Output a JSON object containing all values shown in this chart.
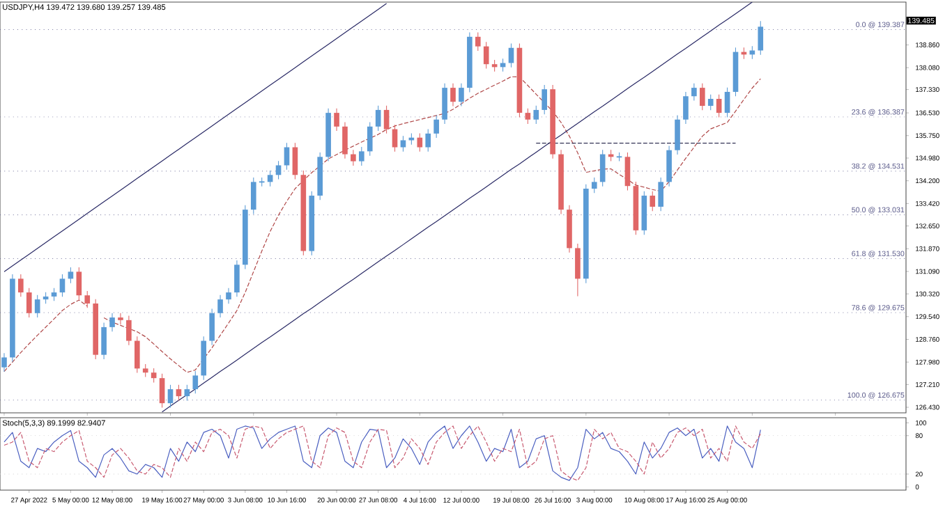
{
  "chart_data": [
    {
      "type": "candlestick",
      "title": "USDJPY,H4  139.472 139.680 139.257 139.485",
      "categories": [
        null,
        null,
        null,
        null,
        null,
        null,
        null,
        null,
        null,
        null,
        null,
        null,
        null,
        null,
        null,
        null,
        null,
        null,
        null,
        null,
        null,
        null,
        null,
        null,
        null,
        null,
        null,
        null,
        null,
        null,
        null,
        null,
        null,
        null,
        null,
        null,
        null,
        null,
        null,
        null,
        null,
        null,
        null,
        null,
        null,
        null,
        null,
        null,
        null,
        null,
        null,
        null,
        null,
        null,
        null,
        null,
        null,
        null,
        null,
        null,
        null,
        null,
        null,
        null,
        null,
        null,
        null,
        null,
        null,
        null,
        null,
        null,
        null,
        null,
        null,
        null,
        null,
        null,
        null,
        null,
        null,
        null,
        null,
        null,
        null,
        null,
        null,
        null,
        null,
        null,
        null,
        null,
        null,
        null,
        null,
        null,
        null,
        null,
        null,
        null,
        null,
        null,
        null,
        null,
        null,
        null,
        null,
        null,
        null
      ],
      "ohlc": [
        [
          127.8,
          128.29,
          127.65,
          128.14
        ],
        [
          128.14,
          130.99,
          127.99,
          130.84
        ],
        [
          130.84,
          130.99,
          130.22,
          130.37
        ],
        [
          130.37,
          130.52,
          129.51,
          129.66
        ],
        [
          129.66,
          130.28,
          129.51,
          130.13
        ],
        [
          130.13,
          130.38,
          129.98,
          130.23
        ],
        [
          130.23,
          130.52,
          130.08,
          130.37
        ],
        [
          130.37,
          130.99,
          130.22,
          130.84
        ],
        [
          130.84,
          131.23,
          130.69,
          131.08
        ],
        [
          131.08,
          131.23,
          130.12,
          130.27
        ],
        [
          130.27,
          130.42,
          129.84,
          129.99
        ],
        [
          129.99,
          130.14,
          128.08,
          128.23
        ],
        [
          128.23,
          129.33,
          128.08,
          129.18
        ],
        [
          129.18,
          129.66,
          129.03,
          129.51
        ],
        [
          129.51,
          129.66,
          129.27,
          129.42
        ],
        [
          129.42,
          129.57,
          128.56,
          128.71
        ],
        [
          128.71,
          128.86,
          127.61,
          127.76
        ],
        [
          127.76,
          127.91,
          127.47,
          127.62
        ],
        [
          127.62,
          127.77,
          127.28,
          127.43
        ],
        [
          127.43,
          127.58,
          126.42,
          126.57
        ],
        [
          126.57,
          127.2,
          126.42,
          127.05
        ],
        [
          127.05,
          127.2,
          126.66,
          126.81
        ],
        [
          126.81,
          127.2,
          126.66,
          127.05
        ],
        [
          127.05,
          127.67,
          126.9,
          127.52
        ],
        [
          127.52,
          128.86,
          127.37,
          128.71
        ],
        [
          128.71,
          129.81,
          128.56,
          129.66
        ],
        [
          129.66,
          130.28,
          129.51,
          130.13
        ],
        [
          130.13,
          130.52,
          129.98,
          130.37
        ],
        [
          130.37,
          131.47,
          130.22,
          131.32
        ],
        [
          131.32,
          133.36,
          131.17,
          133.21
        ],
        [
          133.21,
          134.31,
          133.06,
          134.16
        ],
        [
          134.16,
          134.31,
          134.01,
          134.16
        ],
        [
          134.16,
          134.55,
          134.01,
          134.4
        ],
        [
          134.4,
          134.88,
          134.25,
          134.73
        ],
        [
          134.73,
          135.5,
          134.58,
          135.35
        ],
        [
          135.35,
          135.5,
          134.25,
          134.4
        ],
        [
          134.4,
          134.55,
          131.64,
          131.79
        ],
        [
          131.79,
          133.84,
          131.64,
          133.69
        ],
        [
          133.69,
          135.17,
          133.54,
          135.02
        ],
        [
          135.02,
          136.68,
          134.87,
          136.53
        ],
        [
          136.53,
          136.68,
          135.91,
          136.06
        ],
        [
          136.06,
          136.21,
          134.96,
          135.11
        ],
        [
          135.11,
          135.26,
          134.72,
          134.87
        ],
        [
          134.87,
          135.36,
          134.72,
          135.21
        ],
        [
          135.21,
          136.21,
          135.06,
          136.06
        ],
        [
          136.06,
          136.78,
          135.91,
          136.63
        ],
        [
          136.63,
          136.78,
          135.82,
          135.97
        ],
        [
          135.97,
          136.12,
          135.2,
          135.35
        ],
        [
          135.35,
          135.74,
          135.2,
          135.59
        ],
        [
          135.59,
          135.83,
          135.44,
          135.68
        ],
        [
          135.68,
          135.83,
          135.2,
          135.35
        ],
        [
          135.35,
          135.97,
          135.2,
          135.82
        ],
        [
          135.82,
          136.45,
          135.67,
          136.3
        ],
        [
          136.3,
          137.54,
          136.15,
          137.39
        ],
        [
          137.39,
          137.54,
          136.76,
          136.91
        ],
        [
          136.91,
          137.54,
          136.76,
          137.39
        ],
        [
          137.39,
          139.29,
          137.24,
          139.14
        ],
        [
          139.14,
          139.29,
          138.66,
          138.81
        ],
        [
          138.81,
          138.96,
          138.05,
          138.2
        ],
        [
          138.2,
          138.35,
          137.95,
          138.1
        ],
        [
          138.1,
          138.39,
          137.95,
          138.24
        ],
        [
          138.24,
          138.91,
          138.09,
          138.76
        ],
        [
          138.76,
          138.91,
          136.38,
          136.53
        ],
        [
          136.53,
          136.68,
          136.15,
          136.3
        ],
        [
          136.3,
          136.78,
          136.15,
          136.63
        ],
        [
          136.63,
          137.49,
          136.48,
          137.34
        ],
        [
          137.34,
          137.49,
          134.96,
          135.11
        ],
        [
          135.11,
          135.26,
          133.06,
          133.21
        ],
        [
          133.21,
          133.36,
          131.74,
          131.89
        ],
        [
          131.89,
          132.04,
          130.24,
          130.84
        ],
        [
          130.84,
          134.08,
          130.69,
          133.93
        ],
        [
          133.93,
          134.31,
          133.78,
          134.16
        ],
        [
          134.16,
          135.26,
          134.01,
          135.11
        ],
        [
          135.11,
          135.26,
          134.87,
          135.02
        ],
        [
          135.02,
          135.17,
          134.87,
          135.02
        ],
        [
          135.02,
          135.17,
          133.87,
          134.02
        ],
        [
          134.02,
          134.17,
          132.35,
          132.5
        ],
        [
          132.5,
          133.84,
          132.35,
          133.69
        ],
        [
          133.69,
          133.84,
          133.16,
          133.31
        ],
        [
          133.31,
          134.31,
          133.16,
          134.16
        ],
        [
          134.16,
          135.4,
          134.01,
          135.25
        ],
        [
          135.25,
          136.45,
          135.1,
          136.3
        ],
        [
          136.3,
          137.25,
          136.15,
          137.1
        ],
        [
          137.1,
          137.54,
          136.95,
          137.39
        ],
        [
          137.39,
          137.54,
          136.62,
          136.77
        ],
        [
          136.77,
          137.16,
          136.62,
          137.01
        ],
        [
          137.01,
          137.16,
          136.38,
          136.53
        ],
        [
          136.53,
          137.4,
          136.38,
          137.25
        ],
        [
          137.25,
          138.77,
          137.1,
          138.62
        ],
        [
          138.62,
          138.77,
          138.38,
          138.53
        ],
        [
          138.53,
          138.82,
          138.38,
          138.67
        ],
        [
          138.67,
          139.68,
          138.52,
          139.485
        ],
        null,
        null,
        null,
        null,
        null,
        null,
        null,
        null,
        null,
        null,
        null,
        null,
        null,
        null,
        null,
        null,
        null
      ],
      "colors": [
        "#5b9bd5",
        "#5b9bd5",
        "#e06666",
        "#e06666",
        "#5b9bd5",
        "#5b9bd5",
        "#5b9bd5",
        "#5b9bd5",
        "#5b9bd5",
        "#e06666",
        "#e06666",
        "#e06666",
        "#5b9bd5",
        "#5b9bd5",
        "#e06666",
        "#e06666",
        "#e06666",
        "#e06666",
        "#e06666",
        "#e06666",
        "#5b9bd5",
        "#e06666",
        "#5b9bd5",
        "#5b9bd5",
        "#5b9bd5",
        "#5b9bd5",
        "#5b9bd5",
        "#5b9bd5",
        "#5b9bd5",
        "#5b9bd5",
        "#5b9bd5",
        "#5b9bd5",
        "#5b9bd5",
        "#5b9bd5",
        "#5b9bd5",
        "#e06666",
        "#e06666",
        "#5b9bd5",
        "#5b9bd5",
        "#5b9bd5",
        "#e06666",
        "#e06666",
        "#e06666",
        "#5b9bd5",
        "#5b9bd5",
        "#5b9bd5",
        "#e06666",
        "#e06666",
        "#5b9bd5",
        "#5b9bd5",
        "#e06666",
        "#5b9bd5",
        "#5b9bd5",
        "#5b9bd5",
        "#e06666",
        "#5b9bd5",
        "#5b9bd5",
        "#e06666",
        "#e06666",
        "#e06666",
        "#5b9bd5",
        "#5b9bd5",
        "#e06666",
        "#e06666",
        "#5b9bd5",
        "#5b9bd5",
        "#e06666",
        "#e06666",
        "#e06666",
        "#e06666",
        "#5b9bd5",
        "#5b9bd5",
        "#5b9bd5",
        "#e06666",
        "#5b9bd5",
        "#e06666",
        "#e06666",
        "#5b9bd5",
        "#e06666",
        "#5b9bd5",
        "#5b9bd5",
        "#5b9bd5",
        "#5b9bd5",
        "#5b9bd5",
        "#e06666",
        "#5b9bd5",
        "#e06666",
        "#5b9bd5",
        "#5b9bd5",
        "#e06666",
        "#5b9bd5",
        "#5b9bd5",
        null,
        null,
        null,
        null,
        null,
        null,
        null,
        null,
        null,
        null,
        null,
        null,
        null,
        null,
        null,
        null,
        null
      ],
      "series": [
        {
          "type": "line",
          "color": "#b04848",
          "line_style": "dashed",
          "values": [
            127.66,
            127.98,
            128.31,
            128.61,
            128.9,
            129.18,
            129.46,
            129.75,
            129.96,
            130.11,
            129.9,
            null,
            129.5,
            129.35,
            129.24,
            129.13,
            129.02,
            128.85,
            128.6,
            128.34,
            128.09,
            127.86,
            127.63,
            127.71,
            128.09,
            128.47,
            128.9,
            129.32,
            129.75,
            130.37,
            131.08,
            131.79,
            132.46,
            133.02,
            133.5,
            133.93,
            134.21,
            134.48,
            134.71,
            134.95,
            135.1,
            135.25,
            135.39,
            135.53,
            135.66,
            135.79,
            135.96,
            136.08,
            136.16,
            136.23,
            136.3,
            136.37,
            136.44,
            136.51,
            136.65,
            136.84,
            137.03,
            137.2,
            137.34,
            137.48,
            137.62,
            137.77,
            137.76,
            137.47,
            137.17,
            136.88,
            136.58,
            136.2,
            135.73,
            135.16,
            134.49,
            134.54,
            134.6,
            134.61,
            134.42,
            134.24,
            134.05,
            133.98,
            133.9,
            133.84,
            134.17,
            134.57,
            134.97,
            135.35,
            135.73,
            135.98,
            136.09,
            136.2,
            136.59,
            136.99,
            137.38,
            137.7,
            null,
            null,
            null,
            null,
            null,
            null,
            null,
            null,
            null,
            null,
            null,
            null,
            null,
            null,
            null,
            null,
            null
          ]
        },
        {
          "type": "line",
          "color": "#2a2a66",
          "line_style": "solid",
          "values": [
            131.08,
            131.28,
            131.48,
            131.68,
            131.88,
            132.08,
            132.28,
            132.48,
            132.68,
            132.88,
            133.08,
            133.28,
            133.48,
            133.68,
            133.88,
            134.08,
            134.28,
            134.48,
            134.68,
            134.88,
            135.08,
            135.28,
            135.48,
            135.68,
            135.88,
            136.08,
            136.28,
            136.48,
            136.68,
            136.88,
            137.08,
            137.28,
            137.48,
            137.68,
            137.88,
            138.08,
            138.28,
            138.48,
            138.68,
            138.88,
            139.08,
            139.28,
            139.48,
            139.68,
            139.88,
            140.08,
            140.28,
            null,
            null,
            null,
            null,
            null,
            null,
            null,
            null,
            null,
            null,
            null,
            null,
            null,
            null,
            null,
            null,
            null,
            null,
            null,
            null,
            null,
            null,
            null,
            null,
            null,
            null,
            null,
            null,
            null,
            null,
            null,
            null,
            null,
            null,
            null,
            null,
            null,
            null,
            null,
            null,
            null,
            null,
            null,
            null,
            null,
            null,
            null,
            null,
            null,
            null,
            null,
            null,
            null,
            null,
            null,
            null,
            null,
            null,
            null,
            null,
            null,
            null
          ]
        },
        {
          "type": "line",
          "color": "#2a2a66",
          "line_style": "solid",
          "values": [
            null,
            null,
            null,
            null,
            null,
            null,
            null,
            null,
            null,
            null,
            null,
            null,
            null,
            null,
            null,
            null,
            null,
            null,
            null,
            126.27,
            126.47,
            126.67,
            126.86,
            127.06,
            127.26,
            127.46,
            127.66,
            127.85,
            128.05,
            128.25,
            128.45,
            128.65,
            128.84,
            129.04,
            129.24,
            129.44,
            129.64,
            129.83,
            130.03,
            130.23,
            130.43,
            130.63,
            130.82,
            131.02,
            131.22,
            131.42,
            131.62,
            131.81,
            132.01,
            132.21,
            132.41,
            132.61,
            132.8,
            133.0,
            133.2,
            133.4,
            133.6,
            133.79,
            133.99,
            134.19,
            134.39,
            134.59,
            134.78,
            134.98,
            135.18,
            135.38,
            135.58,
            135.77,
            135.97,
            136.17,
            136.37,
            136.57,
            136.76,
            136.96,
            137.16,
            137.36,
            137.56,
            137.75,
            137.95,
            138.15,
            138.35,
            138.55,
            138.74,
            138.94,
            139.14,
            139.34,
            139.54,
            139.73,
            139.93,
            140.13,
            140.33,
            null,
            null,
            null,
            null,
            null,
            null,
            null,
            null,
            null,
            null,
            null,
            null,
            null,
            null,
            null,
            null,
            null,
            null
          ]
        },
        {
          "type": "line",
          "color": "#333355",
          "line_style": "dashed",
          "values": [
            null,
            null,
            null,
            null,
            null,
            null,
            null,
            null,
            null,
            null,
            null,
            null,
            null,
            null,
            null,
            null,
            null,
            null,
            null,
            null,
            null,
            null,
            null,
            null,
            null,
            null,
            null,
            null,
            null,
            null,
            null,
            null,
            null,
            null,
            null,
            null,
            null,
            null,
            null,
            null,
            null,
            null,
            null,
            null,
            null,
            null,
            null,
            null,
            null,
            null,
            null,
            null,
            null,
            null,
            null,
            null,
            null,
            null,
            null,
            null,
            null,
            null,
            null,
            null,
            135.49,
            135.49,
            135.49,
            135.49,
            135.49,
            135.49,
            135.49,
            135.49,
            135.49,
            135.49,
            135.49,
            135.49,
            135.49,
            135.49,
            135.49,
            135.49,
            135.49,
            135.49,
            135.49,
            135.49,
            135.49,
            135.49,
            135.49,
            135.49,
            135.49,
            null,
            null,
            null,
            null,
            null,
            null,
            null,
            null,
            null,
            null,
            null,
            null,
            null,
            null,
            null,
            null,
            null,
            null,
            null,
            null
          ]
        }
      ],
      "ref_lines": [
        {
          "axis": "y",
          "value": 139.387,
          "label": "0.0 @ 139.387",
          "color": "#5a5a8a",
          "line_style": "dotted"
        },
        {
          "axis": "y",
          "value": 136.387,
          "label": "23.6 @ 136.387",
          "color": "#5a5a8a",
          "line_style": "dotted"
        },
        {
          "axis": "y",
          "value": 134.531,
          "label": "38.2 @ 134.531",
          "color": "#5a5a8a",
          "line_style": "dotted"
        },
        {
          "axis": "y",
          "value": 133.031,
          "label": "50.0 @ 133.031",
          "color": "#5a5a8a",
          "line_style": "dotted"
        },
        {
          "axis": "y",
          "value": 131.53,
          "label": "61.8 @ 131.530",
          "color": "#5a5a8a",
          "line_style": "dotted"
        },
        {
          "axis": "y",
          "value": 129.675,
          "label": "78.6 @ 129.675",
          "color": "#5a5a8a",
          "line_style": "dotted"
        },
        {
          "axis": "y",
          "value": 126.675,
          "label": "100.0 @ 126.675",
          "color": "#5a5a8a",
          "line_style": "dotted"
        }
      ],
      "annotations": [
        "139.485"
      ],
      "ylim": [
        126.24,
        140.33
      ],
      "yticks": [
        {
          "value": 126.43,
          "label": "126.430"
        },
        {
          "value": 127.21,
          "label": "127.210"
        },
        {
          "value": 127.98,
          "label": "127.980"
        },
        {
          "value": 128.76,
          "label": "128.760"
        },
        {
          "value": 129.54,
          "label": "129.540"
        },
        {
          "value": 130.32,
          "label": "130.320"
        },
        {
          "value": 131.09,
          "label": "131.090"
        },
        {
          "value": 131.87,
          "label": "131.870"
        },
        {
          "value": 132.65,
          "label": "132.650"
        },
        {
          "value": 133.42,
          "label": "133.420"
        },
        {
          "value": 134.2,
          "label": "134.200"
        },
        {
          "value": 134.98,
          "label": "134.980"
        },
        {
          "value": 135.75,
          "label": "135.750"
        },
        {
          "value": 136.53,
          "label": "136.530"
        },
        {
          "value": 137.33,
          "label": "137.330"
        },
        {
          "value": 138.08,
          "label": "138.080"
        },
        {
          "value": 138.86,
          "label": "138.860"
        }
      ],
      "tick_labels": "y"
    },
    {
      "type": "line",
      "title": "Stoch(5,3,3) 89.1999 82.9407",
      "categories": [
        null,
        null,
        null,
        "27 Apr 2022",
        null,
        null,
        null,
        null,
        "5 May 00:00",
        null,
        null,
        null,
        null,
        "12 May 08:00",
        null,
        null,
        null,
        null,
        null,
        "19 May 16:00",
        null,
        null,
        null,
        null,
        "27 May 00:00",
        null,
        null,
        null,
        null,
        "3 Jun 08:00",
        null,
        null,
        null,
        null,
        "10 Jun 16:00",
        null,
        null,
        null,
        null,
        null,
        "20 Jun 00:00",
        null,
        null,
        null,
        null,
        "27 Jun 08:00",
        null,
        null,
        null,
        null,
        "4 Jul 16:00",
        null,
        null,
        null,
        null,
        "12 Jul 00:00",
        null,
        null,
        null,
        null,
        null,
        "19 Jul 08:00",
        null,
        null,
        null,
        null,
        "26 Jul 16:00",
        null,
        null,
        null,
        null,
        "3 Aug 00:00",
        null,
        null,
        null,
        null,
        null,
        "10 Aug 08:00",
        null,
        null,
        null,
        null,
        "17 Aug 16:00",
        null,
        null,
        null,
        null,
        "25 Aug 00:00",
        null,
        null,
        null,
        null,
        null,
        null,
        null,
        null,
        null,
        null,
        null,
        null,
        null,
        null,
        null,
        null,
        null,
        null,
        null,
        null,
        null
      ],
      "series": [
        {
          "color": "#4a5fc0",
          "line_style": "solid",
          "values": [
            70,
            85,
            40,
            30,
            60,
            55,
            70,
            80,
            88,
            40,
            30,
            15,
            50,
            60,
            45,
            25,
            20,
            35,
            30,
            15,
            60,
            40,
            70,
            55,
            85,
            90,
            80,
            45,
            90,
            95,
            92,
            60,
            75,
            85,
            90,
            95,
            40,
            30,
            80,
            92,
            85,
            40,
            30,
            70,
            90,
            88,
            30,
            45,
            75,
            60,
            35,
            70,
            85,
            95,
            60,
            80,
            95,
            70,
            40,
            60,
            55,
            90,
            30,
            40,
            75,
            80,
            25,
            15,
            10,
            30,
            90,
            75,
            85,
            60,
            55,
            40,
            20,
            70,
            45,
            60,
            85,
            92,
            80,
            90,
            45,
            60,
            40,
            95,
            70,
            60,
            30,
            89,
            null,
            null,
            null,
            null,
            null,
            null,
            null,
            null,
            null,
            null,
            null,
            null,
            null,
            null,
            null,
            null,
            null
          ]
        },
        {
          "color": "#c85a70",
          "line_style": "dashed",
          "values": [
            65,
            70,
            85,
            40,
            30,
            60,
            55,
            70,
            80,
            88,
            40,
            30,
            15,
            50,
            60,
            45,
            25,
            20,
            35,
            30,
            15,
            60,
            40,
            70,
            55,
            85,
            90,
            80,
            45,
            90,
            95,
            92,
            60,
            75,
            85,
            90,
            95,
            40,
            30,
            80,
            92,
            85,
            40,
            30,
            70,
            90,
            88,
            30,
            45,
            75,
            60,
            35,
            70,
            85,
            95,
            60,
            80,
            95,
            70,
            40,
            60,
            55,
            90,
            30,
            40,
            75,
            80,
            25,
            15,
            10,
            30,
            90,
            75,
            85,
            60,
            55,
            40,
            20,
            70,
            45,
            60,
            85,
            92,
            80,
            90,
            45,
            60,
            40,
            95,
            70,
            60,
            83,
            null,
            null,
            null,
            null,
            null,
            null,
            null,
            null,
            null,
            null,
            null,
            null,
            null,
            null,
            null,
            null,
            null
          ]
        }
      ],
      "ref_lines": [
        {
          "axis": "y",
          "value": 80,
          "color": "#c8c8c8",
          "line_style": "dotted"
        },
        {
          "axis": "y",
          "value": 20,
          "color": "#c8c8c8",
          "line_style": "dotted"
        }
      ],
      "ylim": [
        -5,
        108
      ],
      "yticks": [
        0,
        20,
        80,
        100
      ]
    }
  ]
}
